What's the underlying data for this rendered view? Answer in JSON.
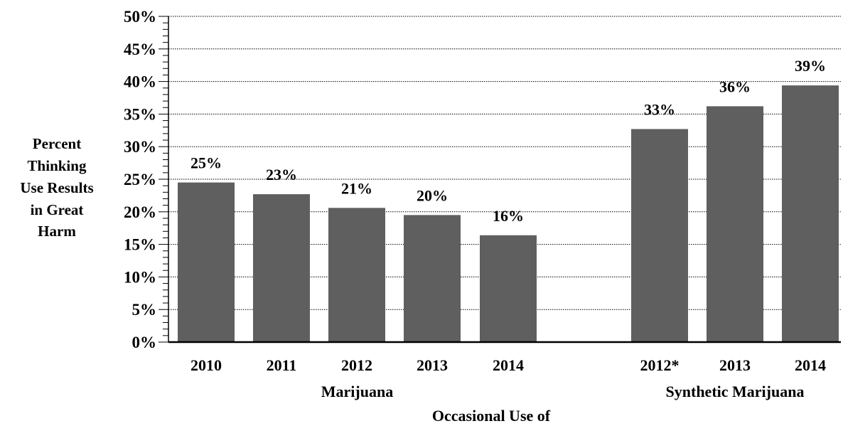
{
  "chart_data": {
    "type": "bar",
    "ylabel_lines": [
      "Percent",
      "Thinking",
      "Use Results",
      "in Great",
      "Harm"
    ],
    "xlabel": "Occasional Use of",
    "ylim": [
      0,
      50
    ],
    "y_ticks": [
      "0%",
      "5%",
      "10%",
      "15%",
      "20%",
      "25%",
      "30%",
      "35%",
      "40%",
      "45%",
      "50%"
    ],
    "grid": true,
    "bar_color": "#5f5f5f",
    "groups": [
      {
        "name": "Marijuana",
        "categories": [
          "2010",
          "2011",
          "2012",
          "2013",
          "2014"
        ],
        "values": [
          24.5,
          22.7,
          20.6,
          19.5,
          16.4
        ],
        "labels": [
          "25%",
          "23%",
          "21%",
          "20%",
          "16%"
        ]
      },
      {
        "name": "Synthetic Marijuana",
        "categories": [
          "2012*",
          "2013",
          "2014"
        ],
        "values": [
          32.7,
          36.2,
          39.4
        ],
        "labels": [
          "33%",
          "36%",
          "39%"
        ]
      }
    ]
  }
}
